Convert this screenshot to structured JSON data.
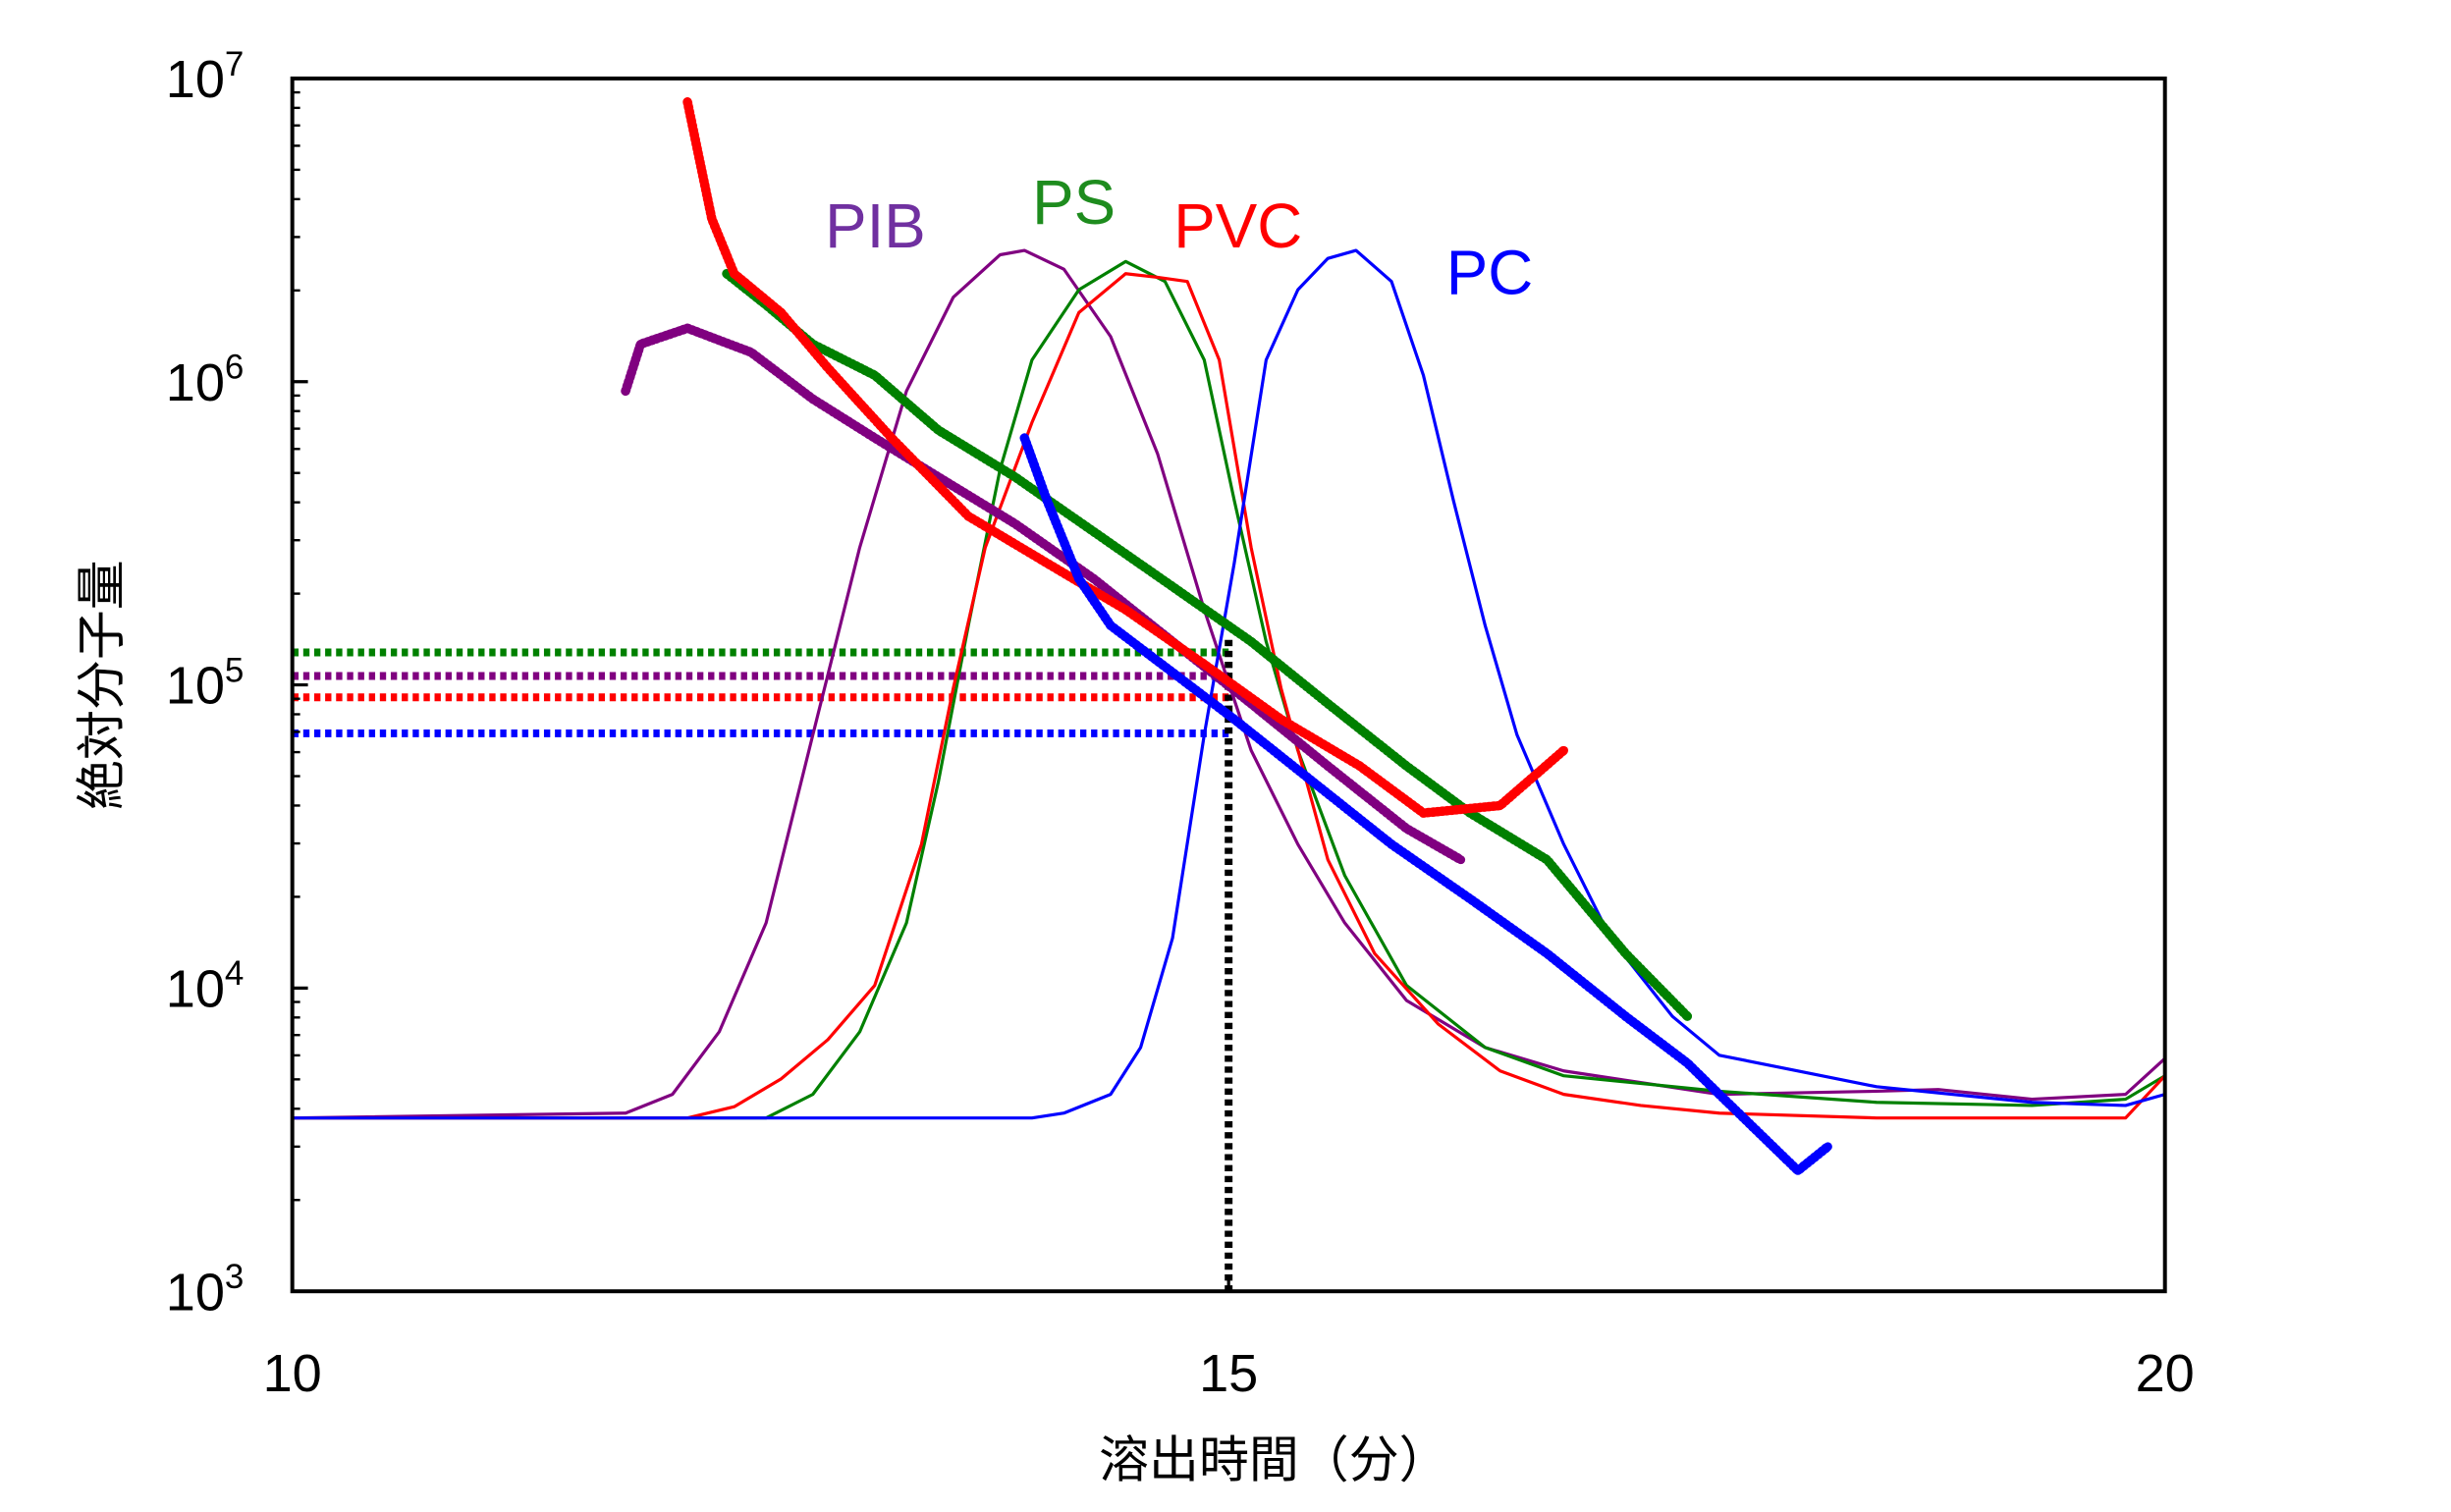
{
  "chart_data": {
    "type": "line",
    "title": "",
    "xlabel": "溶出時間（分）",
    "ylabel": "絶対分子量",
    "xlim": [
      10,
      20
    ],
    "ylim": [
      1000,
      10000000
    ],
    "yscale": "log",
    "xticks": [
      10,
      15,
      20
    ],
    "xtick_labels": [
      "10",
      "15",
      "20"
    ],
    "yticks": [
      1000,
      10000,
      100000,
      1000000,
      10000000
    ],
    "ytick_labels": [
      {
        "base": "10",
        "exp": "3"
      },
      {
        "base": "10",
        "exp": "4"
      },
      {
        "base": "10",
        "exp": "5"
      },
      {
        "base": "10",
        "exp": "6"
      },
      {
        "base": "10",
        "exp": "7"
      }
    ],
    "grid": false,
    "series_labels": [
      {
        "name": "PIB",
        "color": "#7030A0"
      },
      {
        "name": "PS",
        "color": "#1E8C1E"
      },
      {
        "name": "PVC",
        "color": "#FF0000"
      },
      {
        "name": "PC",
        "color": "#0000FF"
      }
    ],
    "chromatograms": [
      {
        "name": "PIB",
        "color": "#800080",
        "x": [
          10,
          11.78,
          12.03,
          12.28,
          12.53,
          12.78,
          13.03,
          13.28,
          13.53,
          13.78,
          13.91,
          14.12,
          14.37,
          14.62,
          14.87,
          15.12,
          15.37,
          15.62,
          15.95,
          16.37,
          16.79,
          17.62,
          18.46,
          18.79,
          19.29,
          19.79,
          20
        ],
        "y": [
          3730,
          3870,
          4460,
          7170,
          16400,
          68400,
          284000,
          931000,
          1900000,
          2620000,
          2710000,
          2350000,
          1410000,
          579000,
          177000,
          60800,
          29800,
          16400,
          9100,
          6370,
          5330,
          4460,
          4570,
          4630,
          4300,
          4460,
          5860
        ]
      },
      {
        "name": "PS",
        "color": "#008000",
        "x": [
          10,
          12.53,
          12.78,
          13.03,
          13.28,
          13.45,
          13.61,
          13.78,
          13.95,
          14.2,
          14.45,
          14.66,
          14.87,
          15.03,
          15.2,
          15.37,
          15.62,
          15.95,
          16.37,
          16.79,
          17.62,
          18.46,
          19.29,
          19.79,
          20
        ],
        "y": [
          3730,
          3730,
          4460,
          7170,
          16400,
          47900,
          157000,
          514000,
          1180000,
          2010000,
          2490000,
          2140000,
          1180000,
          406000,
          139000,
          60800,
          23500,
          10200,
          6370,
          5140,
          4570,
          4200,
          4100,
          4300,
          5140
        ]
      },
      {
        "name": "PVC",
        "color": "#FF0000",
        "x": [
          10,
          12.11,
          12.36,
          12.61,
          12.86,
          13.11,
          13.36,
          13.53,
          13.7,
          13.95,
          14.2,
          14.45,
          14.62,
          14.78,
          14.95,
          15.12,
          15.28,
          15.53,
          15.78,
          16.12,
          16.45,
          16.79,
          17.2,
          17.62,
          18.46,
          19.79,
          20
        ],
        "y": [
          3730,
          3730,
          4060,
          5020,
          6760,
          10200,
          29800,
          97700,
          284000,
          734000,
          1690000,
          2270000,
          2210000,
          2140000,
          1180000,
          284000,
          97700,
          26500,
          13000,
          7600,
          5330,
          4460,
          4100,
          3870,
          3730,
          3730,
          5140
        ]
      },
      {
        "name": "PC",
        "color": "#0000FF",
        "x": [
          10,
          13.95,
          14.12,
          14.37,
          14.53,
          14.7,
          14.87,
          15.03,
          15.2,
          15.37,
          15.53,
          15.68,
          15.87,
          16.04,
          16.2,
          16.37,
          16.54,
          16.79,
          17.04,
          17.37,
          17.62,
          18.04,
          18.46,
          19.29,
          19.79,
          20
        ],
        "y": [
          3730,
          3730,
          3870,
          4460,
          6370,
          14600,
          68400,
          252000,
          1180000,
          2010000,
          2550000,
          2710000,
          2140000,
          1050000,
          406000,
          157000,
          68400,
          29800,
          14600,
          8070,
          6000,
          5330,
          4730,
          4200,
          4100,
          4460
        ]
      }
    ],
    "molecular_weight": [
      {
        "name": "PIB",
        "color": "#800080",
        "x": [
          11.78,
          11.86,
          12.11,
          12.45,
          12.78,
          13.11,
          13.45,
          13.86,
          14.28,
          14.7,
          15.12,
          15.53,
          15.95,
          16.24
        ],
        "y": [
          931000,
          1330000,
          1500000,
          1250000,
          877000,
          652000,
          485000,
          340000,
          224000,
          139000,
          86700,
          54000,
          33600,
          26500
        ]
      },
      {
        "name": "PS",
        "color": "#008000",
        "x": [
          12.32,
          12.53,
          12.78,
          13.11,
          13.45,
          13.86,
          14.28,
          14.7,
          15.12,
          15.53,
          15.95,
          16.29,
          16.7,
          17.12,
          17.45
        ],
        "y": [
          2270000,
          1790000,
          1330000,
          1050000,
          692000,
          485000,
          320000,
          211000,
          139000,
          86700,
          54000,
          37800,
          26500,
          13000,
          8070
        ]
      },
      {
        "name": "PVC",
        "color": "#FF0000",
        "x": [
          12.11,
          12.24,
          12.36,
          12.61,
          12.86,
          13.2,
          13.61,
          14.03,
          14.45,
          14.87,
          15.28,
          15.7,
          16.04,
          16.45,
          16.79
        ],
        "y": [
          8370000,
          3440000,
          2270000,
          1690000,
          1110000,
          652000,
          360000,
          252000,
          177000,
          117000,
          77000,
          54000,
          37800,
          40000,
          60800
        ]
      },
      {
        "name": "PC",
        "color": "#0000FF",
        "x": [
          13.91,
          14.03,
          14.2,
          14.37,
          14.7,
          15.03,
          15.45,
          15.87,
          16.29,
          16.7,
          17.12,
          17.45,
          17.62,
          18.04,
          18.2
        ],
        "y": [
          652000,
          406000,
          224000,
          157000,
          110000,
          77000,
          47900,
          29800,
          19700,
          13000,
          8070,
          5660,
          4460,
          2500,
          3000
        ]
      }
    ],
    "reference_lines": {
      "retention_time": 15,
      "horizontal": [
        {
          "name": "PS",
          "color": "#008000",
          "value": 128000
        },
        {
          "name": "PIB",
          "color": "#800080",
          "value": 107000
        },
        {
          "name": "PVC",
          "color": "#FF0000",
          "value": 91000
        },
        {
          "name": "PC",
          "color": "#0000FF",
          "value": 69200
        }
      ],
      "vertical_color": "#000000"
    }
  }
}
